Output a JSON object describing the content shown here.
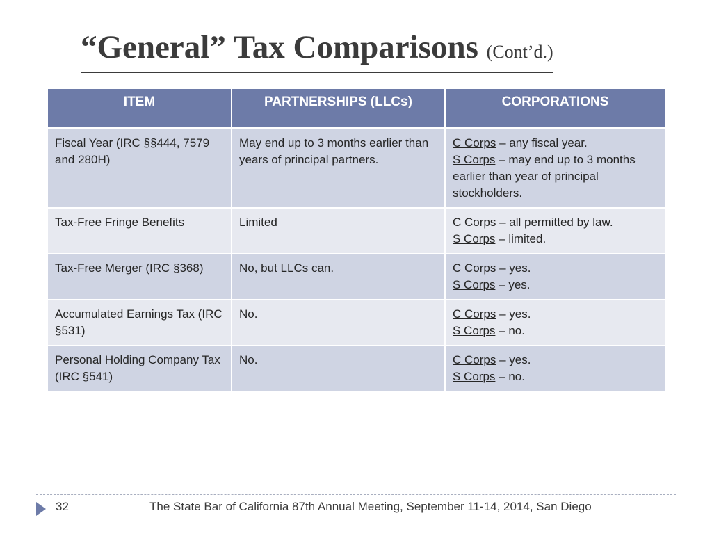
{
  "slide": {
    "title": "“General” Tax Comparisons",
    "subtitle": "(Cont’d.)"
  },
  "table": {
    "headers": [
      "ITEM",
      "PARTNERSHIPS (LLCs)",
      "CORPORATIONS"
    ],
    "rows": [
      {
        "item": "Fiscal Year (IRC §§444, 7579 and 280H)",
        "partnerships": "May end up to 3 months earlier than years of principal partners.",
        "c_label": "C Corps",
        "c_text": " – any fiscal year.",
        "s_label": "S Corps",
        "s_text": " – may end up to 3 months earlier than year of principal stockholders."
      },
      {
        "item": "Tax-Free Fringe Benefits",
        "partnerships": "Limited",
        "c_label": "C Corps",
        "c_text": " – all permitted by law.",
        "s_label": "S Corps",
        "s_text": " – limited."
      },
      {
        "item": "Tax-Free Merger (IRC §368)",
        "partnerships": "No, but LLCs can.",
        "c_label": "C Corps",
        "c_text": " – yes.",
        "s_label": "S Corps",
        "s_text": " – yes."
      },
      {
        "item": "Accumulated Earnings Tax (IRC §531)",
        "partnerships": "No.",
        "c_label": "C Corps",
        "c_text": " – yes.",
        "s_label": "S Corps",
        "s_text": " – no."
      },
      {
        "item": "Personal Holding Company Tax (IRC §541)",
        "partnerships": "No.",
        "c_label": "C Corps",
        "c_text": " – yes.",
        "s_label": "S Corps",
        "s_text": " – no."
      }
    ]
  },
  "footer": {
    "page_number": "32",
    "text": "The State Bar of California 87th Annual Meeting,  September 11-14,  2014,  San Diego",
    "arrow_icon": "triangle-right-icon"
  },
  "colors": {
    "header_bg": "#6d7ba8",
    "row_dark": "#cfd4e3",
    "row_light": "#e7e9f0"
  }
}
